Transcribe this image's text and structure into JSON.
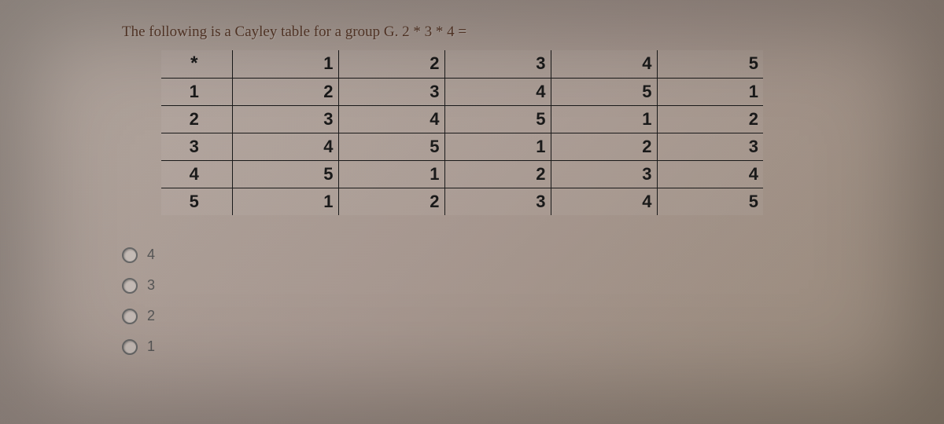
{
  "question": {
    "text": "The following is a Cayley table for a group G.  2 * 3 * 4 ="
  },
  "table": {
    "operator": "*",
    "headers": [
      "1",
      "2",
      "3",
      "4",
      "5"
    ],
    "rows": [
      {
        "label": "1",
        "cells": [
          "2",
          "3",
          "4",
          "5",
          "1"
        ]
      },
      {
        "label": "2",
        "cells": [
          "3",
          "4",
          "5",
          "1",
          "2"
        ]
      },
      {
        "label": "3",
        "cells": [
          "4",
          "5",
          "1",
          "2",
          "3"
        ]
      },
      {
        "label": "4",
        "cells": [
          "5",
          "1",
          "2",
          "3",
          "4"
        ]
      },
      {
        "label": "5",
        "cells": [
          "1",
          "2",
          "3",
          "4",
          "5"
        ]
      }
    ]
  },
  "options": [
    {
      "value": "4"
    },
    {
      "value": "3"
    },
    {
      "value": "2"
    },
    {
      "value": "1"
    }
  ],
  "style": {
    "question_color": "#5a3a2a",
    "cell_border": "#1a1a1a",
    "cell_text": "#1a1a1a",
    "option_color": "#555555"
  }
}
